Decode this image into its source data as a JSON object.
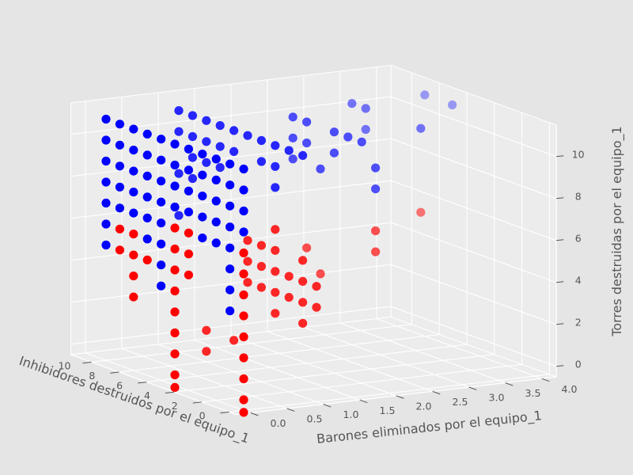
{
  "chart_data": {
    "type": "scatter3d",
    "title": "",
    "xlabel": "Barones eliminados por el equipo_1",
    "ylabel": "Inhibidores destruidos por el equipo_1",
    "zlabel": "Torres destruidas por el equipo_1",
    "x_ticks": [
      "0.0",
      "0.5",
      "1.0",
      "1.5",
      "2.0",
      "2.5",
      "3.0",
      "3.5",
      "4.0"
    ],
    "y_ticks": [
      "0",
      "2",
      "4",
      "6",
      "8",
      "10"
    ],
    "z_ticks": [
      "0",
      "2",
      "4",
      "6",
      "8",
      "10"
    ],
    "xlim": [
      -0.2,
      4.2
    ],
    "ylim": [
      -0.5,
      11.5
    ],
    "zlim": [
      -0.5,
      11.5
    ],
    "grid": true,
    "legend": "none",
    "colors": {
      "background": "#e5e5e5",
      "pane": "#ececec",
      "grid": "#ffffff",
      "series_a": "#0000ff",
      "series_b": "#ff0000"
    },
    "series": [
      {
        "color": "#0000ff",
        "points": [
          [
            0,
            0,
            11
          ],
          [
            0,
            1,
            11
          ],
          [
            0,
            2,
            11
          ],
          [
            0,
            3,
            11
          ],
          [
            0,
            4,
            11
          ],
          [
            0,
            5,
            11
          ],
          [
            0,
            6,
            11
          ],
          [
            0,
            7,
            11
          ],
          [
            0,
            8,
            11
          ],
          [
            0,
            9,
            11
          ],
          [
            0,
            10,
            11
          ],
          [
            0,
            0,
            10
          ],
          [
            0,
            1,
            10
          ],
          [
            0,
            2,
            10
          ],
          [
            0,
            3,
            10
          ],
          [
            0,
            4,
            10
          ],
          [
            0,
            5,
            10
          ],
          [
            0,
            6,
            10
          ],
          [
            0,
            7,
            10
          ],
          [
            0,
            8,
            10
          ],
          [
            0,
            9,
            10
          ],
          [
            0,
            10,
            10
          ],
          [
            0,
            0,
            9
          ],
          [
            0,
            1,
            9
          ],
          [
            0,
            2,
            9
          ],
          [
            0,
            3,
            9
          ],
          [
            0,
            4,
            9
          ],
          [
            0,
            5,
            9
          ],
          [
            0,
            6,
            9
          ],
          [
            0,
            7,
            9
          ],
          [
            0,
            8,
            9
          ],
          [
            0,
            9,
            9
          ],
          [
            0,
            10,
            9
          ],
          [
            0,
            0,
            8
          ],
          [
            0,
            1,
            8
          ],
          [
            0,
            2,
            8
          ],
          [
            0,
            3,
            8
          ],
          [
            0,
            4,
            8
          ],
          [
            0,
            5,
            8
          ],
          [
            0,
            6,
            8
          ],
          [
            0,
            7,
            8
          ],
          [
            0,
            8,
            8
          ],
          [
            0,
            9,
            8
          ],
          [
            0,
            10,
            8
          ],
          [
            0,
            1,
            7
          ],
          [
            0,
            2,
            7
          ],
          [
            0,
            3,
            7
          ],
          [
            0,
            6,
            7
          ],
          [
            0,
            7,
            7
          ],
          [
            0,
            8,
            7
          ],
          [
            0,
            9,
            7
          ],
          [
            0,
            10,
            7
          ],
          [
            0,
            1,
            6
          ],
          [
            0,
            6,
            6
          ],
          [
            0,
            7,
            6
          ],
          [
            0,
            10,
            6
          ],
          [
            0,
            1,
            5
          ],
          [
            0,
            6,
            5
          ],
          [
            0,
            10,
            5
          ],
          [
            0,
            1,
            4
          ],
          [
            0,
            6,
            4
          ],
          [
            1,
            1,
            11
          ],
          [
            1,
            2,
            11
          ],
          [
            1,
            3,
            11
          ],
          [
            1,
            4,
            11
          ],
          [
            1,
            5,
            11
          ],
          [
            1,
            6,
            11
          ],
          [
            1,
            7,
            11
          ],
          [
            1,
            8,
            11
          ],
          [
            1,
            9,
            11
          ],
          [
            1,
            10,
            11
          ],
          [
            1,
            3,
            10
          ],
          [
            1,
            4,
            10
          ],
          [
            1,
            6,
            10
          ],
          [
            1,
            7,
            10
          ],
          [
            1,
            8,
            10
          ],
          [
            1,
            9,
            10
          ],
          [
            1,
            10,
            10
          ],
          [
            1,
            3,
            9
          ],
          [
            1,
            7,
            9
          ],
          [
            1,
            8,
            9
          ],
          [
            1,
            9,
            9
          ],
          [
            1,
            9,
            8
          ],
          [
            1,
            10,
            8
          ],
          [
            1,
            10,
            6
          ],
          [
            2,
            2,
            11
          ],
          [
            2,
            3,
            11
          ],
          [
            2,
            4,
            11
          ],
          [
            2,
            6,
            11
          ],
          [
            2,
            7,
            11
          ],
          [
            2,
            1,
            10
          ],
          [
            2,
            4,
            10
          ],
          [
            2,
            6,
            10
          ],
          [
            2,
            7,
            10
          ],
          [
            2,
            1,
            9
          ],
          [
            2,
            5,
            9
          ],
          [
            2,
            7,
            9
          ],
          [
            3,
            3,
            11
          ],
          [
            3,
            7,
            11
          ],
          [
            3,
            8,
            11
          ],
          [
            3,
            7,
            10
          ],
          [
            4,
            6,
            11
          ],
          [
            4,
            8,
            11
          ]
        ]
      },
      {
        "color": "#ff0000",
        "points": [
          [
            0,
            0,
            7
          ],
          [
            0,
            4,
            7
          ],
          [
            0,
            5,
            7
          ],
          [
            0,
            0,
            6
          ],
          [
            0,
            4,
            6
          ],
          [
            0,
            5,
            6
          ],
          [
            0,
            8,
            6
          ],
          [
            0,
            9,
            6
          ],
          [
            0,
            0,
            5
          ],
          [
            0,
            4,
            5
          ],
          [
            0,
            5,
            5
          ],
          [
            0,
            7,
            5
          ],
          [
            0,
            8,
            5
          ],
          [
            0,
            9,
            5
          ],
          [
            0,
            0,
            4
          ],
          [
            0,
            5,
            4
          ],
          [
            0,
            8,
            4
          ],
          [
            0,
            0,
            3
          ],
          [
            0,
            5,
            3
          ],
          [
            0,
            8,
            3
          ],
          [
            0,
            0,
            2
          ],
          [
            0,
            5,
            2
          ],
          [
            0,
            0,
            1
          ],
          [
            0,
            5,
            1
          ],
          [
            0,
            0,
            0
          ],
          [
            0,
            5,
            0
          ],
          [
            0,
            0,
            -0.6
          ],
          [
            0,
            5,
            -0.6
          ],
          [
            1,
            3,
            7
          ],
          [
            1,
            1,
            6
          ],
          [
            1,
            3,
            6
          ],
          [
            1,
            4,
            6
          ],
          [
            1,
            5,
            6
          ],
          [
            1,
            0,
            5
          ],
          [
            1,
            1,
            5
          ],
          [
            1,
            2,
            5
          ],
          [
            1,
            3,
            5
          ],
          [
            1,
            4,
            5
          ],
          [
            1,
            5,
            5
          ],
          [
            1,
            0,
            4
          ],
          [
            1,
            1,
            4
          ],
          [
            1,
            2,
            4
          ],
          [
            1,
            3,
            4
          ],
          [
            1,
            4,
            4
          ],
          [
            1,
            5,
            4
          ],
          [
            1,
            1,
            3
          ],
          [
            1,
            3,
            3
          ],
          [
            1,
            6,
            1
          ],
          [
            1,
            8,
            1
          ],
          [
            1,
            8,
            0
          ],
          [
            2,
            1,
            7
          ],
          [
            2,
            1,
            6
          ],
          [
            2,
            6,
            5
          ],
          [
            2,
            5,
            4
          ],
          [
            3,
            3,
            7
          ]
        ]
      }
    ]
  }
}
